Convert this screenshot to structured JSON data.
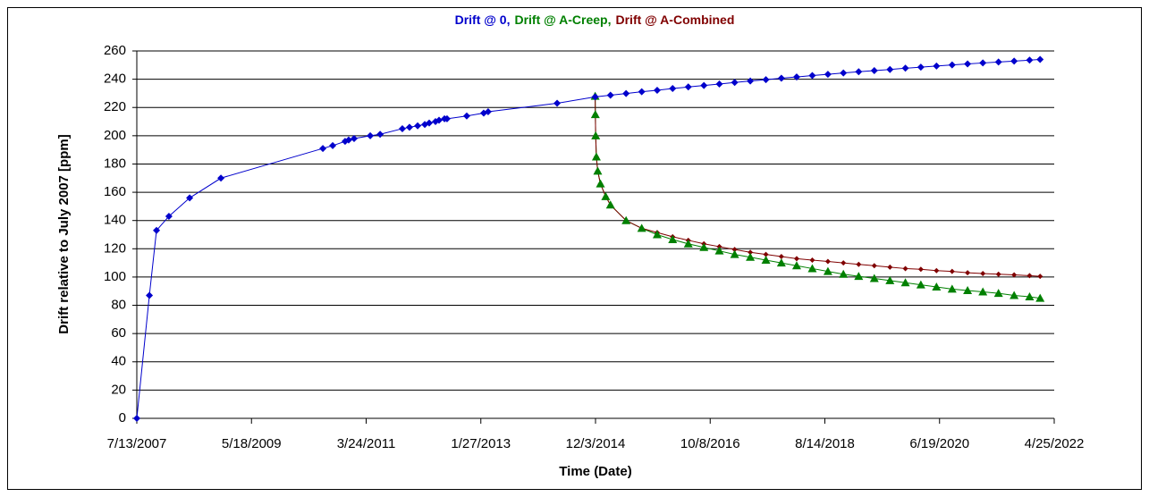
{
  "chart_data": {
    "type": "line",
    "title": [
      "Drift @ 0,",
      "Drift @ A-Creep,",
      "Drift @ A-Combined"
    ],
    "xlabel": "Time (Date)",
    "ylabel": "Drift relative to July 2007 [ppm]",
    "xlim": [
      "7/13/2007",
      "4/25/2022"
    ],
    "xticks": [
      "7/13/2007",
      "5/18/2009",
      "3/24/2011",
      "1/27/2013",
      "12/3/2014",
      "10/8/2016",
      "8/14/2018",
      "6/19/2020",
      "4/25/2022"
    ],
    "ylim": [
      0,
      260
    ],
    "yticks": [
      0,
      20,
      40,
      60,
      80,
      100,
      120,
      140,
      160,
      180,
      200,
      220,
      240,
      260
    ],
    "grid": true,
    "series": [
      {
        "color": "#0000cc",
        "marker": "diamond",
        "x": [
          "7/13/2007",
          "9/25/2007",
          "11/6/2007",
          "1/18/2008",
          "5/19/2008",
          "11/19/2008",
          "7/12/2010",
          "9/8/2010",
          "11/20/2010",
          "12/11/2010",
          "1/12/2011",
          "4/17/2011",
          "6/14/2011",
          "10/23/2011",
          "12/4/2011",
          "1/21/2012",
          "3/3/2012",
          "3/29/2012",
          "5/5/2012",
          "5/26/2012",
          "6/27/2012",
          "7/12/2012",
          "11/5/2012",
          "2/13/2013",
          "3/11/2013",
          "4/21/2014",
          "12/1/2014",
          "3/1/2015",
          "6/1/2015",
          "9/1/2015",
          "12/1/2015",
          "3/1/2016",
          "6/1/2016",
          "9/1/2016",
          "12/1/2016",
          "3/1/2017",
          "6/1/2017",
          "9/1/2017",
          "12/1/2017",
          "3/1/2018",
          "6/1/2018",
          "9/1/2018",
          "12/1/2018",
          "3/1/2019",
          "6/1/2019",
          "9/1/2019",
          "12/1/2019",
          "3/1/2020",
          "6/1/2020",
          "9/1/2020",
          "12/1/2020",
          "3/1/2021",
          "6/1/2021",
          "9/1/2021",
          "12/1/2021",
          "2/1/2022"
        ],
        "values": [
          0,
          87,
          133,
          143,
          156,
          170,
          191,
          193,
          196,
          197,
          198,
          200,
          201,
          205,
          206,
          207,
          208,
          209,
          210,
          211,
          212,
          212,
          214,
          216,
          217,
          223,
          227.5,
          228.7,
          229.9,
          231.1,
          232.2,
          233.4,
          234.5,
          235.6,
          236.6,
          237.7,
          238.7,
          239.7,
          240.7,
          241.6,
          242.6,
          243.5,
          244.4,
          245.3,
          246.1,
          246.9,
          247.8,
          248.5,
          249.3,
          250.1,
          250.8,
          251.5,
          252.2,
          252.8,
          253.5,
          254
        ]
      },
      {
        "color": "#008000",
        "marker": "triangle",
        "x": [
          "12/1/2014",
          "12/2/2014",
          "12/4/2014",
          "12/8/2014",
          "12/16/2014",
          "1/1/2015",
          "2/1/2015",
          "3/1/2015",
          "6/1/2015",
          "9/1/2015",
          "12/1/2015",
          "3/1/2016",
          "6/1/2016",
          "9/1/2016",
          "12/1/2016",
          "3/1/2017",
          "6/1/2017",
          "9/1/2017",
          "12/1/2017",
          "3/1/2018",
          "6/1/2018",
          "9/1/2018",
          "12/1/2018",
          "3/1/2019",
          "6/1/2019",
          "9/1/2019",
          "12/1/2019",
          "3/1/2020",
          "6/1/2020",
          "9/1/2020",
          "12/1/2020",
          "3/1/2021",
          "6/1/2021",
          "9/1/2021",
          "12/1/2021",
          "2/1/2022"
        ],
        "values": [
          228,
          215,
          200,
          185,
          175,
          166,
          157,
          151,
          140,
          134.5,
          130,
          126.5,
          123.5,
          121,
          118.5,
          116,
          114,
          112,
          110,
          108,
          106,
          104,
          102,
          100.5,
          99,
          97.5,
          96,
          94.5,
          93,
          91.5,
          90.5,
          89.5,
          88.5,
          87,
          86,
          85
        ]
      },
      {
        "color": "#800000",
        "marker": "small-diamond",
        "x": [
          "12/1/2014",
          "12/2/2014",
          "12/4/2014",
          "12/8/2014",
          "12/16/2014",
          "1/1/2015",
          "2/1/2015",
          "3/1/2015",
          "6/1/2015",
          "9/1/2015",
          "12/1/2015",
          "3/1/2016",
          "6/1/2016",
          "9/1/2016",
          "12/1/2016",
          "3/1/2017",
          "6/1/2017",
          "9/1/2017",
          "12/1/2017",
          "3/1/2018",
          "6/1/2018",
          "9/1/2018",
          "12/1/2018",
          "3/1/2019",
          "6/1/2019",
          "9/1/2019",
          "12/1/2019",
          "3/1/2020",
          "6/1/2020",
          "9/1/2020",
          "12/1/2020",
          "3/1/2021",
          "6/1/2021",
          "9/1/2021",
          "12/1/2021",
          "2/1/2022"
        ],
        "values": [
          228,
          215,
          200,
          185,
          175,
          166,
          157,
          151,
          140,
          134.5,
          131.5,
          128.5,
          126,
          123.5,
          121.5,
          119.5,
          117.5,
          116,
          114.5,
          113,
          112,
          111,
          110,
          109,
          108,
          107,
          106,
          105.5,
          104.5,
          104,
          103,
          102.5,
          102,
          101.5,
          101,
          100.5
        ]
      }
    ]
  }
}
